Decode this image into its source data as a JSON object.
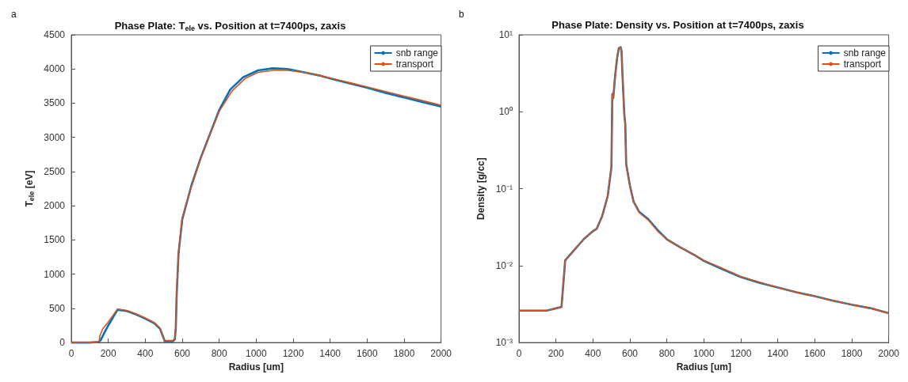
{
  "chart_data": [
    {
      "type": "line",
      "title": "Phase Plate: T$_{ele}$ vs. Position at t=7400ps, zaxis",
      "xlabel": "Radius [um]",
      "ylabel": "T$_{ele}$ [eV]",
      "annotations": [
        "a"
      ],
      "xlim": [
        0,
        2000
      ],
      "xticks": [
        0,
        200,
        400,
        600,
        800,
        1000,
        1200,
        1400,
        1600,
        1800,
        2000
      ],
      "ylim": [
        0,
        4500
      ],
      "yticks": [
        0,
        500,
        1000,
        1500,
        2000,
        2500,
        3000,
        3500,
        4000,
        4500
      ],
      "grid": false,
      "legend": "top right",
      "line_style": "solid",
      "series": [
        {
          "name": "snb range",
          "color": "#0072bd",
          "x": [
            0,
            100,
            150,
            160,
            180,
            200,
            250,
            300,
            350,
            400,
            450,
            480,
            500,
            505,
            520,
            550,
            560,
            565,
            570,
            580,
            600,
            650,
            700,
            750,
            800,
            860,
            930,
            1010,
            1090,
            1170,
            1260,
            1350,
            1430,
            1520,
            1610,
            1700,
            1790,
            1880,
            1970,
            2000
          ],
          "values": [
            0,
            0,
            10,
            40,
            150,
            250,
            480,
            460,
            410,
            350,
            280,
            200,
            60,
            20,
            20,
            20,
            50,
            200,
            700,
            1300,
            1800,
            2300,
            2700,
            3050,
            3400,
            3700,
            3880,
            3980,
            4010,
            4000,
            3950,
            3900,
            3840,
            3780,
            3720,
            3650,
            3590,
            3530,
            3470,
            3450
          ]
        },
        {
          "name": "transport",
          "color": "#d95319",
          "x": [
            0,
            100,
            150,
            155,
            170,
            200,
            250,
            300,
            350,
            400,
            450,
            480,
            500,
            505,
            520,
            550,
            560,
            565,
            570,
            580,
            600,
            650,
            700,
            750,
            800,
            870,
            940,
            1010,
            1090,
            1170,
            1260,
            1350,
            1430,
            1520,
            1610,
            1700,
            1790,
            1880,
            1970,
            2000
          ],
          "values": [
            0,
            0,
            10,
            100,
            200,
            300,
            490,
            470,
            420,
            360,
            290,
            210,
            60,
            30,
            30,
            30,
            60,
            220,
            720,
            1300,
            1820,
            2280,
            2690,
            3040,
            3380,
            3680,
            3860,
            3950,
            3980,
            3980,
            3950,
            3900,
            3850,
            3790,
            3730,
            3670,
            3610,
            3550,
            3490,
            3470
          ]
        }
      ]
    },
    {
      "type": "line",
      "title": "Phase Plate: Density vs. Position at t=7400ps, zaxis",
      "xlabel": "Radius [um]",
      "ylabel": "Density [g/cc]",
      "annotations": [
        "b"
      ],
      "log": "y",
      "xlim": [
        0,
        2000
      ],
      "xticks": [
        0,
        200,
        400,
        600,
        800,
        1000,
        1200,
        1400,
        1600,
        1800,
        2000
      ],
      "ylim": [
        0.001,
        10
      ],
      "yticks": [
        {
          "value": 0.001,
          "label": "10⁻³"
        },
        {
          "value": 0.01,
          "label": "10⁻²"
        },
        {
          "value": 0.1,
          "label": "10⁻¹"
        },
        {
          "value": 1,
          "label": "10⁰"
        },
        {
          "value": 10,
          "label": "10¹"
        }
      ],
      "grid": false,
      "legend": "top right",
      "line_style": "solid",
      "series": [
        {
          "name": "snb range",
          "color": "#0072bd",
          "x": [
            0,
            150,
            230,
            250,
            300,
            350,
            400,
            420,
            450,
            480,
            500,
            505,
            510,
            520,
            530,
            540,
            550,
            555,
            560,
            570,
            575,
            580,
            600,
            620,
            650,
            700,
            750,
            800,
            870,
            950,
            1000,
            1100,
            1200,
            1300,
            1400,
            1500,
            1600,
            1700,
            1800,
            1900,
            2000
          ],
          "values": [
            0.0026,
            0.0026,
            0.0029,
            0.0117,
            0.016,
            0.022,
            0.028,
            0.03,
            0.044,
            0.08,
            0.19,
            1.7,
            1.5,
            2.9,
            4.8,
            6.7,
            6.9,
            6.1,
            3,
            0.9,
            0.7,
            0.21,
            0.11,
            0.068,
            0.05,
            0.04,
            0.029,
            0.022,
            0.0174,
            0.0137,
            0.0115,
            0.009,
            0.0071,
            0.006,
            0.0052,
            0.0045,
            0.004,
            0.0035,
            0.0031,
            0.0028,
            0.0024
          ]
        },
        {
          "name": "transport",
          "color": "#d95319",
          "x": [
            0,
            150,
            230,
            250,
            300,
            350,
            400,
            420,
            450,
            480,
            500,
            505,
            510,
            520,
            530,
            540,
            550,
            555,
            560,
            570,
            575,
            580,
            600,
            620,
            650,
            700,
            750,
            800,
            870,
            950,
            1000,
            1100,
            1200,
            1300,
            1400,
            1500,
            1600,
            1700,
            1800,
            1900,
            2000
          ],
          "values": [
            0.0026,
            0.0026,
            0.0029,
            0.0117,
            0.016,
            0.022,
            0.028,
            0.03,
            0.044,
            0.08,
            0.19,
            1.7,
            1.5,
            2.9,
            4.8,
            6.7,
            6.9,
            6.1,
            3,
            0.9,
            0.7,
            0.21,
            0.11,
            0.068,
            0.049,
            0.039,
            0.028,
            0.022,
            0.0174,
            0.0138,
            0.0117,
            0.0092,
            0.0072,
            0.0061,
            0.0052,
            0.0045,
            0.004,
            0.0035,
            0.0031,
            0.0028,
            0.0024
          ]
        }
      ]
    }
  ]
}
